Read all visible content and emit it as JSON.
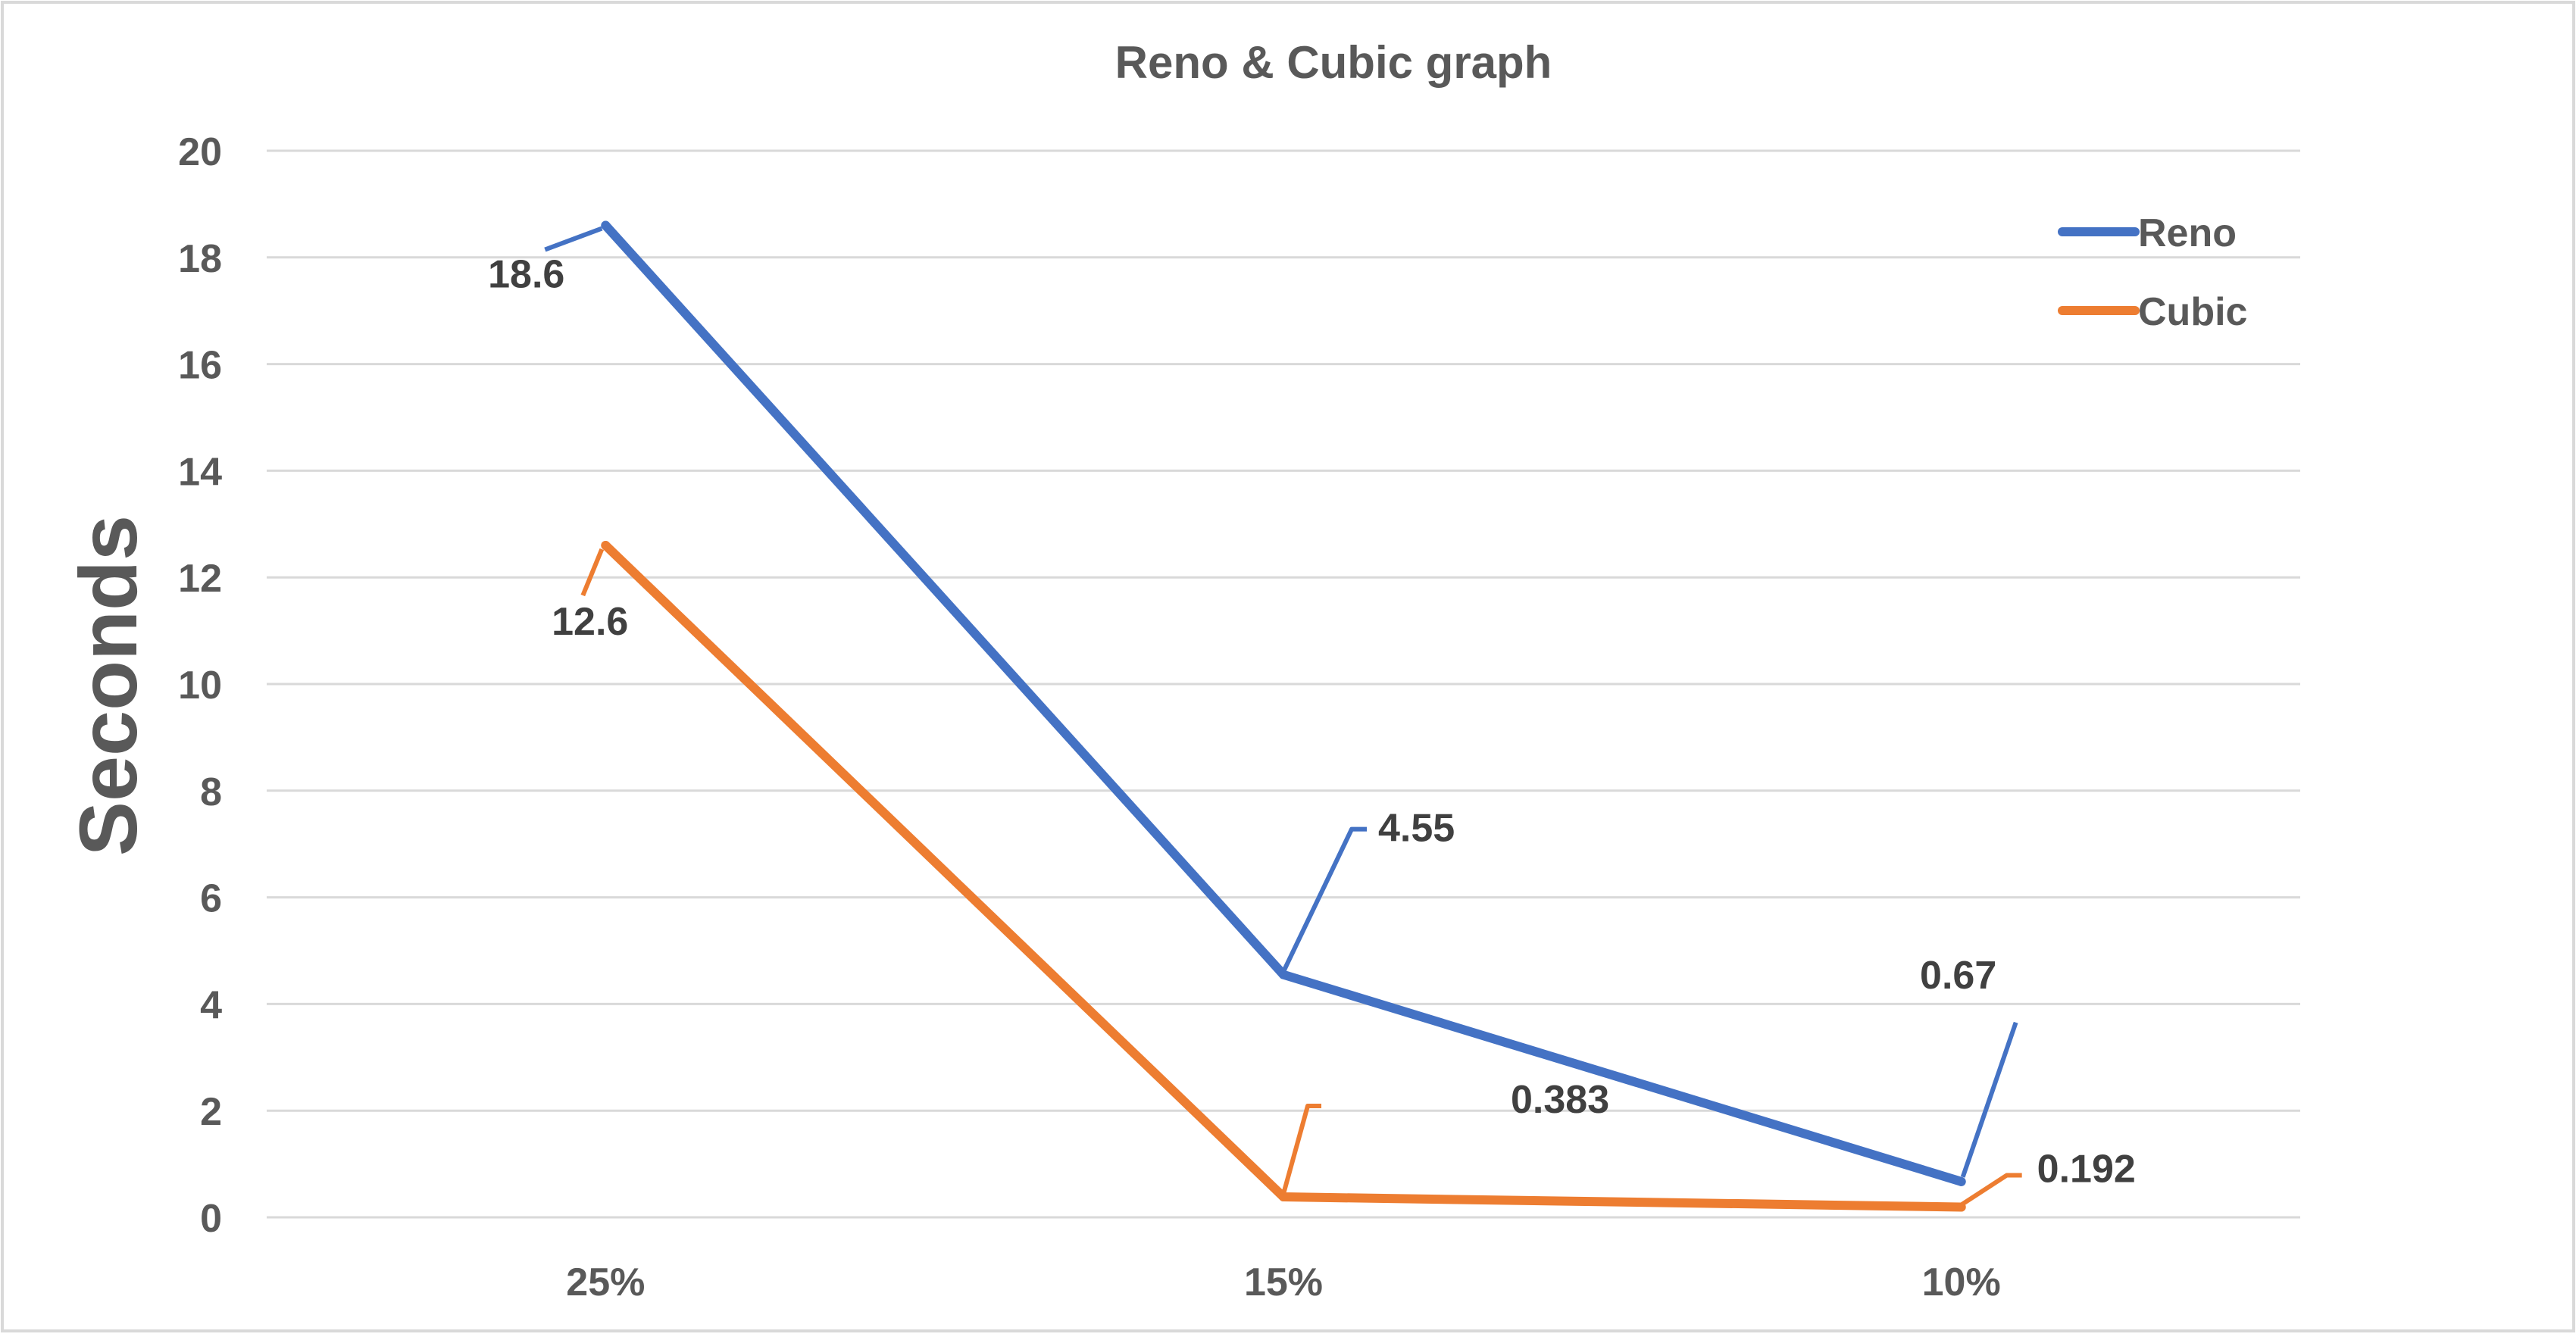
{
  "chart_data": {
    "type": "line",
    "title": "Reno & Cubic graph",
    "xlabel": "",
    "ylabel": "Seconds",
    "categories": [
      "25%",
      "15%",
      "10%"
    ],
    "series": [
      {
        "name": "Reno",
        "values": [
          18.6,
          4.55,
          0.67
        ],
        "color": "#4472C4"
      },
      {
        "name": "Cubic",
        "values": [
          12.6,
          0.383,
          0.192
        ],
        "color": "#ED7D31"
      }
    ],
    "ylim": [
      0,
      20
    ],
    "yticks": [
      0,
      2,
      4,
      6,
      8,
      10,
      12,
      14,
      16,
      18,
      20
    ],
    "grid": true,
    "legend_position": "top-right",
    "data_labels": [
      {
        "series": 0,
        "index": 0,
        "text": "18.6"
      },
      {
        "series": 0,
        "index": 1,
        "text": "4.55"
      },
      {
        "series": 0,
        "index": 2,
        "text": "0.67"
      },
      {
        "series": 1,
        "index": 0,
        "text": "12.6"
      },
      {
        "series": 1,
        "index": 1,
        "text": "0.383"
      },
      {
        "series": 1,
        "index": 2,
        "text": "0.192"
      }
    ],
    "colors": {
      "grid": "#D9D9D9",
      "text": "#595959",
      "label_text": "#404040",
      "border": "#D9D9D9"
    }
  }
}
